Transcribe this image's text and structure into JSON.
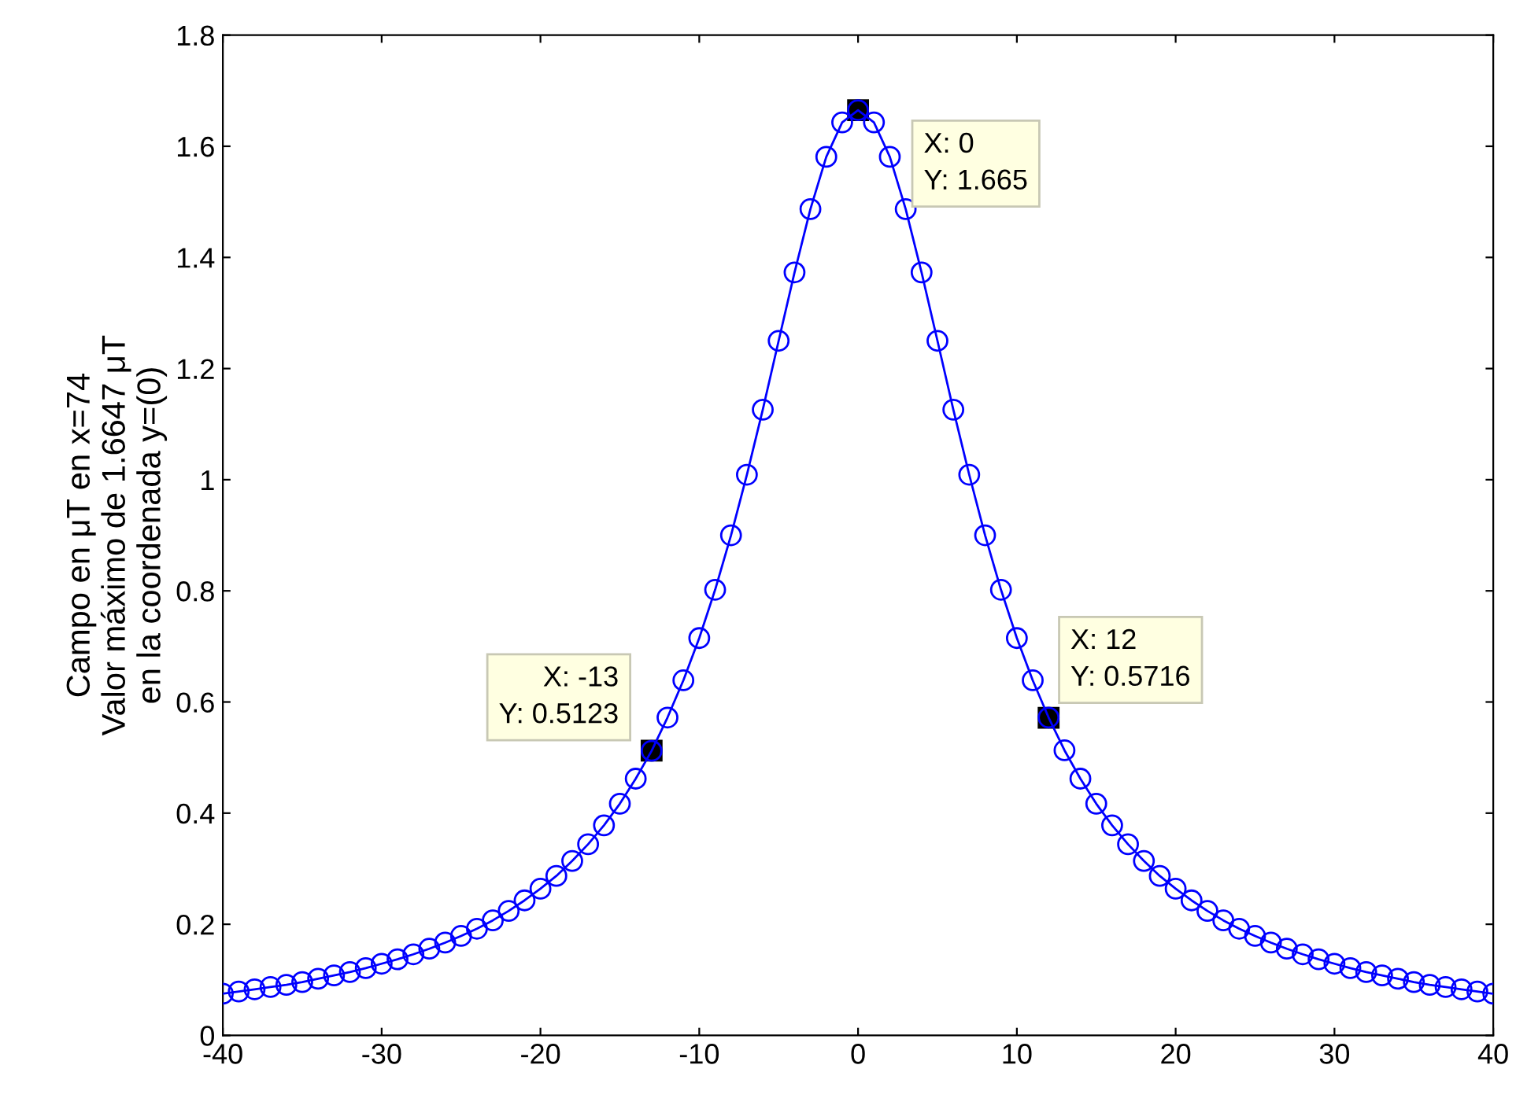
{
  "chart_data": {
    "type": "line",
    "ylabel": "Campo en μT en x=74\nValor máximo de 1.6647 μT\nen la coordenada y=(0)",
    "x": [
      -40,
      -39,
      -38,
      -37,
      -36,
      -35,
      -34,
      -33,
      -32,
      -31,
      -30,
      -29,
      -28,
      -27,
      -26,
      -25,
      -24,
      -23,
      -22,
      -21,
      -20,
      -19,
      -18,
      -17,
      -16,
      -15,
      -14,
      -13,
      -12,
      -11,
      -10,
      -9,
      -8,
      -7,
      -6,
      -5,
      -4,
      -3,
      -2,
      -1,
      0,
      1,
      2,
      3,
      4,
      5,
      6,
      7,
      8,
      9,
      10,
      11,
      12,
      13,
      14,
      15,
      16,
      17,
      18,
      19,
      20,
      21,
      22,
      23,
      24,
      25,
      26,
      27,
      28,
      29,
      30,
      31,
      32,
      33,
      34,
      35,
      36,
      37,
      38,
      39,
      40
    ],
    "series": [
      {
        "color": "#0000ff",
        "values": [
          0.075,
          0.079,
          0.083,
          0.087,
          0.091,
          0.096,
          0.102,
          0.108,
          0.114,
          0.121,
          0.129,
          0.137,
          0.146,
          0.156,
          0.167,
          0.179,
          0.192,
          0.207,
          0.224,
          0.243,
          0.264,
          0.287,
          0.314,
          0.344,
          0.378,
          0.417,
          0.462,
          0.512,
          0.572,
          0.639,
          0.715,
          0.802,
          0.9,
          1.009,
          1.126,
          1.25,
          1.373,
          1.487,
          1.581,
          1.643,
          1.665,
          1.643,
          1.581,
          1.487,
          1.373,
          1.25,
          1.126,
          1.009,
          0.9,
          0.802,
          0.715,
          0.639,
          0.572,
          0.513,
          0.462,
          0.417,
          0.378,
          0.344,
          0.314,
          0.287,
          0.264,
          0.243,
          0.224,
          0.207,
          0.192,
          0.179,
          0.167,
          0.156,
          0.146,
          0.137,
          0.129,
          0.121,
          0.114,
          0.108,
          0.102,
          0.096,
          0.091,
          0.087,
          0.083,
          0.079,
          0.075
        ]
      }
    ],
    "marker": "circle",
    "line_style": "solid",
    "xlim": [
      -40,
      40
    ],
    "ylim": [
      0,
      1.8
    ],
    "xticks": [
      -40,
      -30,
      -20,
      -10,
      0,
      10,
      20,
      30,
      40
    ],
    "yticks": [
      0,
      0.2,
      0.4,
      0.6,
      0.8,
      1,
      1.2,
      1.4,
      1.6,
      1.8
    ],
    "annotations": [
      {
        "text": "X: 0\nY: 1.665",
        "x": 0,
        "y": 1.665
      },
      {
        "text": "X: -13\nY: 0.5123",
        "x": -13,
        "y": 0.5123
      },
      {
        "text": "X: 12\nY: 0.5716",
        "x": 12,
        "y": 0.5716
      }
    ]
  }
}
